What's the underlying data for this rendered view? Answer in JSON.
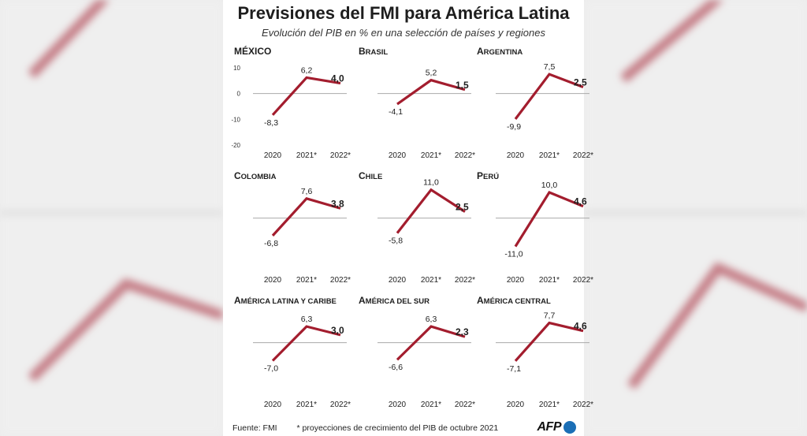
{
  "title": "Previsiones del FMI para América Latina",
  "subtitle": "Evolución del PIB en % en una selección de países y regiones",
  "footer": {
    "source": "Fuente: FMI",
    "note": "* proyecciones de crecimiento del PIB de octubre 2021",
    "logo": "AFP"
  },
  "colors": {
    "line": "#a31d2e",
    "zero_line": "#aaaaaa",
    "background": "#ffffff"
  },
  "chart_data": [
    {
      "type": "line",
      "title": "MÉXICO",
      "categories": [
        "2020",
        "2021*",
        "2022*"
      ],
      "values": [
        -8.3,
        6.2,
        4.0
      ],
      "labels": [
        "-8,3",
        "6,2",
        "4,0"
      ],
      "ylim": [
        -20,
        10
      ],
      "yticks": [
        "10",
        "0",
        "-10",
        "-20"
      ]
    },
    {
      "type": "line",
      "title": "Brasil",
      "categories": [
        "2020",
        "2021*",
        "2022*"
      ],
      "values": [
        -4.1,
        5.2,
        1.5
      ],
      "labels": [
        "-4,1",
        "5,2",
        "1,5"
      ],
      "ylim": [
        -20,
        10
      ]
    },
    {
      "type": "line",
      "title": "Argentina",
      "categories": [
        "2020",
        "2021*",
        "2022*"
      ],
      "values": [
        -9.9,
        7.5,
        2.5
      ],
      "labels": [
        "-9,9",
        "7,5",
        "2,5"
      ],
      "ylim": [
        -20,
        10
      ]
    },
    {
      "type": "line",
      "title": "Colombia",
      "categories": [
        "2020",
        "2021*",
        "2022*"
      ],
      "values": [
        -6.8,
        7.6,
        3.8
      ],
      "labels": [
        "-6,8",
        "7,6",
        "3,8"
      ],
      "ylim": [
        -20,
        10
      ]
    },
    {
      "type": "line",
      "title": "Chile",
      "categories": [
        "2020",
        "2021*",
        "2022*"
      ],
      "values": [
        -5.8,
        11.0,
        2.5
      ],
      "labels": [
        "-5,8",
        "11,0",
        "2,5"
      ],
      "ylim": [
        -20,
        10
      ]
    },
    {
      "type": "line",
      "title": "Perú",
      "categories": [
        "2020",
        "2021*",
        "2022*"
      ],
      "values": [
        -11.0,
        10.0,
        4.6
      ],
      "labels": [
        "-11,0",
        "10,0",
        "4,6"
      ],
      "ylim": [
        -20,
        10
      ]
    },
    {
      "type": "line",
      "title": "América Latina y Caribe",
      "categories": [
        "2020",
        "2021*",
        "2022*"
      ],
      "values": [
        -7.0,
        6.3,
        3.0
      ],
      "labels": [
        "-7,0",
        "6,3",
        "3,0"
      ],
      "ylim": [
        -20,
        10
      ]
    },
    {
      "type": "line",
      "title": "América Del Sur",
      "categories": [
        "2020",
        "2021*",
        "2022*"
      ],
      "values": [
        -6.6,
        6.3,
        2.3
      ],
      "labels": [
        "-6,6",
        "6,3",
        "2,3"
      ],
      "ylim": [
        -20,
        10
      ]
    },
    {
      "type": "line",
      "title": "América Central",
      "categories": [
        "2020",
        "2021*",
        "2022*"
      ],
      "values": [
        -7.1,
        7.7,
        4.6
      ],
      "labels": [
        "-7,1",
        "7,7",
        "4,6"
      ],
      "ylim": [
        -20,
        10
      ]
    }
  ]
}
